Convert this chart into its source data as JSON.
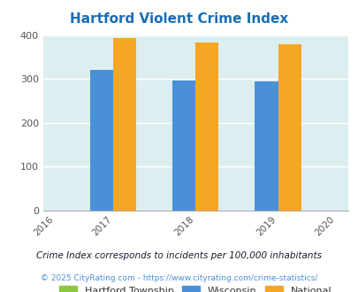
{
  "title": "Hartford Violent Crime Index",
  "years": [
    2016,
    2017,
    2018,
    2019,
    2020
  ],
  "bar_years": [
    2017,
    2018,
    2019
  ],
  "hartford_values": [
    0,
    0,
    0
  ],
  "wisconsin_values": [
    320,
    296,
    294
  ],
  "national_values": [
    394,
    383,
    379
  ],
  "hartford_color": "#8dc63f",
  "wisconsin_color": "#4a90d9",
  "national_color": "#f5a623",
  "bg_color": "#ddeef0",
  "title_color": "#1a6eb5",
  "ylabel_max": 400,
  "yticks": [
    0,
    100,
    200,
    300,
    400
  ],
  "bar_width": 0.28,
  "legend_labels": [
    "Hartford Township",
    "Wisconsin",
    "National"
  ],
  "legend_text_color": "#333333",
  "footnote1": "Crime Index corresponds to incidents per 100,000 inhabitants",
  "footnote2": "© 2025 CityRating.com - https://www.cityrating.com/crime-statistics/",
  "footnote1_color": "#1a1a2e",
  "footnote2_color": "#4a90d9"
}
